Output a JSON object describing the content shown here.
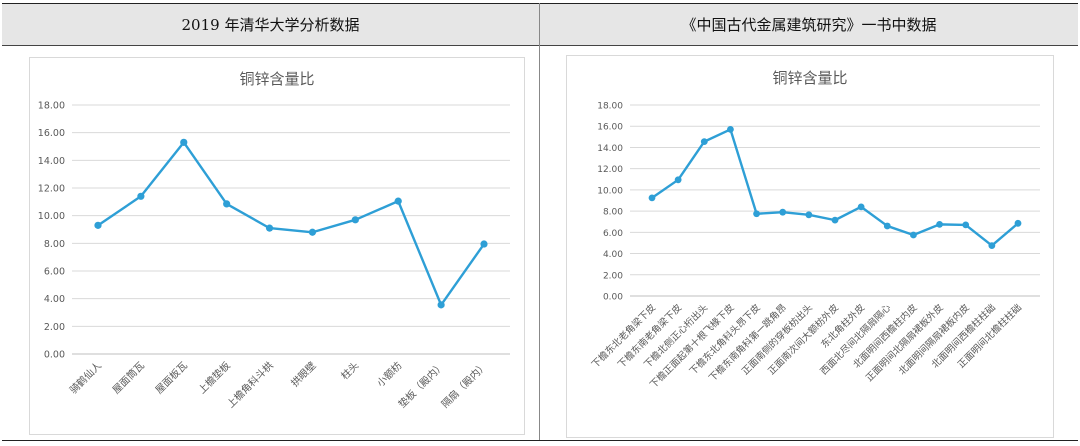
{
  "headers": {
    "left": "2019 年清华大学分析数据",
    "right": "《中国古代金属建筑研究》一书中数据"
  },
  "chart_data": [
    {
      "type": "line",
      "title": "铜锌含量比",
      "xlabel": "",
      "ylabel": "",
      "ylim": [
        0,
        18
      ],
      "yticks": [
        "0.00",
        "2.00",
        "4.00",
        "6.00",
        "8.00",
        "10.00",
        "12.00",
        "14.00",
        "16.00",
        "18.00"
      ],
      "grid": true,
      "line_color": "#2e9fd6",
      "categories": [
        "骑鹤仙人",
        "屋面筒瓦",
        "屋面板瓦",
        "上檐垫板",
        "上檐角科斗栱",
        "拱眼壁",
        "柱头",
        "小额枋",
        "垫板（殿内）",
        "隔扇（殿内）"
      ],
      "values": [
        9.3,
        11.4,
        15.3,
        10.85,
        9.1,
        8.8,
        9.7,
        11.05,
        3.55,
        7.95
      ]
    },
    {
      "type": "line",
      "title": "铜锌含量比",
      "xlabel": "",
      "ylabel": "",
      "ylim": [
        0,
        18
      ],
      "yticks": [
        "0.00",
        "2.00",
        "4.00",
        "6.00",
        "8.00",
        "10.00",
        "12.00",
        "14.00",
        "16.00",
        "18.00"
      ],
      "grid": true,
      "line_color": "#2e9fd6",
      "categories": [
        "下檐东北老角梁下皮",
        "下檐东南老角梁下皮",
        "下檐北侧正心桁出头",
        "下檐正面起第十根飞椽下皮",
        "下檐东北角科头昂下皮",
        "下檐东南角科第一跳角昂",
        "正面南侧的穿板枋出头",
        "正面南次间大额枋外皮",
        "东北角柱外皮",
        "西面北尽间北隔扇隔心",
        "北面明间西檐柱内皮",
        "正面明间北隔扇裙板外皮",
        "北面明间隔扇裙板内皮",
        "北面明间西檐柱柱础",
        "正面明间北檐柱柱础"
      ],
      "values": [
        9.25,
        10.95,
        14.55,
        15.7,
        7.75,
        7.9,
        7.65,
        7.15,
        8.4,
        6.6,
        5.75,
        6.75,
        6.7,
        4.75,
        6.85
      ]
    }
  ]
}
